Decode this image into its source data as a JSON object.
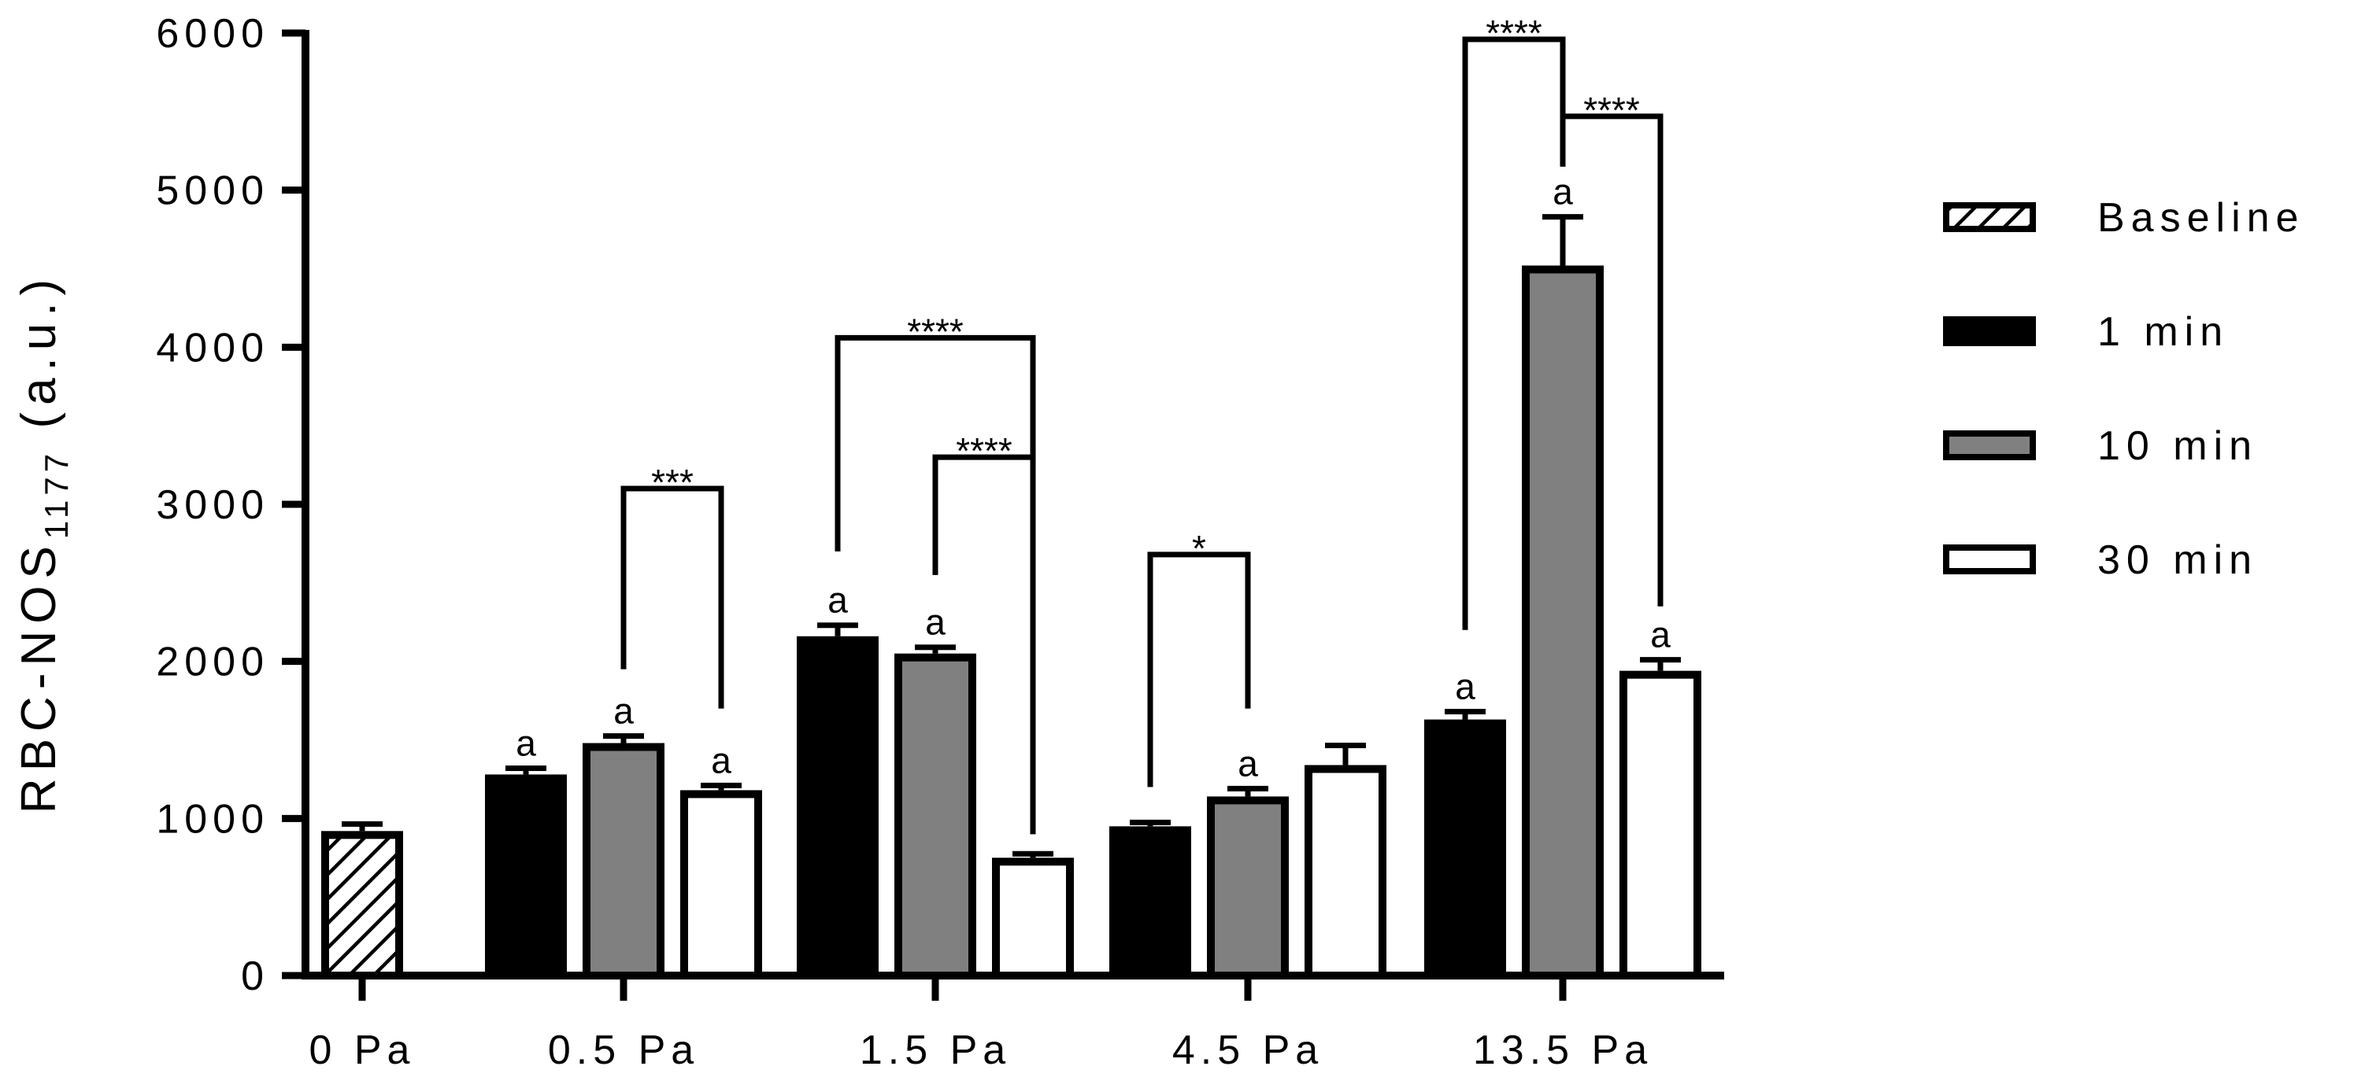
{
  "chart_data": {
    "type": "bar",
    "title": "",
    "xlabel": "",
    "ylabel": "RBC-NOS",
    "ylabel_subscript": "1177",
    "ylabel_unit": " (a.u.)",
    "ylim": [
      0,
      6000
    ],
    "yticks": [
      0,
      1000,
      2000,
      3000,
      4000,
      5000,
      6000
    ],
    "categories": [
      "0 Pa",
      "0.5 Pa",
      "1.5 Pa",
      "4.5 Pa",
      "13.5 Pa"
    ],
    "series": [
      {
        "name": "Baseline",
        "pattern": "hatch",
        "color": "#ffffff",
        "values": [
          920,
          null,
          null,
          null,
          null
        ],
        "errors": [
          45,
          null,
          null,
          null,
          null
        ]
      },
      {
        "name": "1 min",
        "pattern": "solid",
        "color": "#000000",
        "values": [
          null,
          1280,
          2160,
          950,
          1630
        ],
        "errors": [
          null,
          40,
          70,
          25,
          50
        ]
      },
      {
        "name": "10 min",
        "pattern": "solid",
        "color": "#808080",
        "values": [
          null,
          1480,
          2050,
          1140,
          4520
        ],
        "errors": [
          null,
          45,
          40,
          50,
          310
        ]
      },
      {
        "name": "30 min",
        "pattern": "solid",
        "color": "#ffffff",
        "values": [
          null,
          1180,
          750,
          1340,
          1940
        ],
        "errors": [
          null,
          30,
          25,
          125,
          70
        ]
      }
    ],
    "annotations": [
      {
        "category": "0.5 Pa",
        "series": "1 min",
        "text": "a"
      },
      {
        "category": "0.5 Pa",
        "series": "10 min",
        "text": "a"
      },
      {
        "category": "0.5 Pa",
        "series": "30 min",
        "text": "a"
      },
      {
        "category": "1.5 Pa",
        "series": "1 min",
        "text": "a"
      },
      {
        "category": "1.5 Pa",
        "series": "10 min",
        "text": "a"
      },
      {
        "category": "4.5 Pa",
        "series": "10 min",
        "text": "a"
      },
      {
        "category": "13.5 Pa",
        "series": "1 min",
        "text": "a"
      },
      {
        "category": "13.5 Pa",
        "series": "10 min",
        "text": "a"
      },
      {
        "category": "13.5 Pa",
        "series": "30 min",
        "text": "a"
      }
    ],
    "significance": [
      {
        "category": "0.5 Pa",
        "from": "10 min",
        "to": "30 min",
        "level": 3100,
        "from_start": 1950,
        "to_start": 1700,
        "text": "***"
      },
      {
        "category": "1.5 Pa",
        "from": "1 min",
        "to": "30 min",
        "level": 4060,
        "from_start": 2700,
        "to_start": 900,
        "text": "****"
      },
      {
        "category": "1.5 Pa",
        "from": "10 min",
        "to": "30 min",
        "level": 3300,
        "from_start": 2550,
        "to_start": 900,
        "text": "****"
      },
      {
        "category": "4.5 Pa",
        "from": "1 min",
        "to": "10 min",
        "level": 2680,
        "from_start": 1200,
        "to_start": 1700,
        "text": "*"
      },
      {
        "category": "13.5 Pa",
        "from": "1 min",
        "to": "10 min",
        "level": 5960,
        "from_start": 2200,
        "to_start": 5150,
        "text": "****"
      },
      {
        "category": "13.5 Pa",
        "from": "10 min",
        "to": "30 min",
        "level": 5470,
        "from_start": 5150,
        "to_start": 2350,
        "text": "****"
      }
    ],
    "legend": {
      "position": "right",
      "items": [
        {
          "label": "Baseline",
          "pattern": "hatch",
          "color": "#ffffff"
        },
        {
          "label": "1 min",
          "pattern": "solid",
          "color": "#000000"
        },
        {
          "label": "10 min",
          "pattern": "solid",
          "color": "#808080"
        },
        {
          "label": "30 min",
          "pattern": "solid",
          "color": "#ffffff"
        }
      ]
    }
  }
}
